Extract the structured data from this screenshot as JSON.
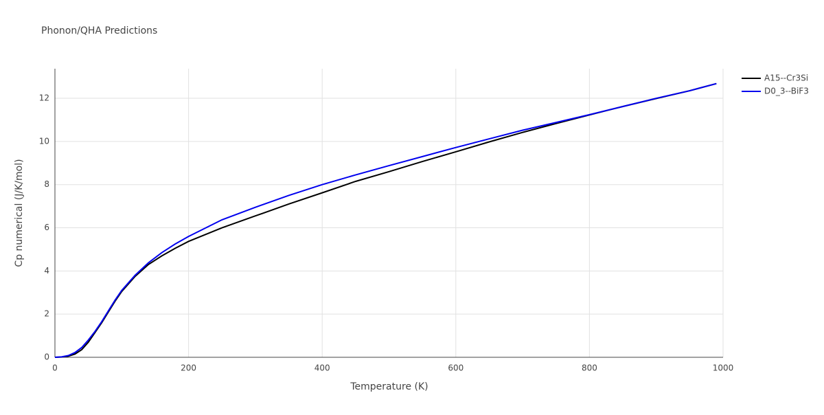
{
  "chart_data": {
    "type": "line",
    "title": "Phonon/QHA Predictions",
    "x_label": "Temperature (K)",
    "y_label": "Cp numerical (J/K/mol)",
    "x": [
      0,
      10,
      20,
      30,
      40,
      50,
      60,
      70,
      80,
      90,
      100,
      120,
      140,
      160,
      180,
      200,
      250,
      300,
      350,
      400,
      450,
      500,
      550,
      600,
      650,
      700,
      750,
      800,
      850,
      900,
      950,
      990
    ],
    "series": [
      {
        "name": "A15--Cr3Si",
        "color": "#000000",
        "values": [
          0,
          0.01,
          0.05,
          0.15,
          0.35,
          0.7,
          1.15,
          1.6,
          2.1,
          2.6,
          3.05,
          3.75,
          4.3,
          4.7,
          5.05,
          5.37,
          6.0,
          6.55,
          7.1,
          7.62,
          8.15,
          8.6,
          9.07,
          9.52,
          9.98,
          10.42,
          10.83,
          11.23,
          11.62,
          11.99,
          12.35,
          12.68
        ]
      },
      {
        "name": "D0_3--BiF3",
        "color": "#0000ee",
        "values": [
          0,
          0.02,
          0.08,
          0.22,
          0.45,
          0.8,
          1.2,
          1.65,
          2.15,
          2.65,
          3.1,
          3.8,
          4.38,
          4.85,
          5.25,
          5.6,
          6.37,
          6.95,
          7.5,
          8.0,
          8.45,
          8.88,
          9.3,
          9.72,
          10.12,
          10.52,
          10.88,
          11.24,
          11.62,
          12.0,
          12.35,
          12.68
        ]
      }
    ],
    "xlim": [
      0,
      1000
    ],
    "xticks": [
      0,
      200,
      400,
      600,
      800,
      1000
    ],
    "ylim": [
      0,
      13.37
    ],
    "yticks": [
      0,
      2,
      4,
      6,
      8,
      10,
      12
    ],
    "grid": true,
    "legend": "top-right"
  }
}
